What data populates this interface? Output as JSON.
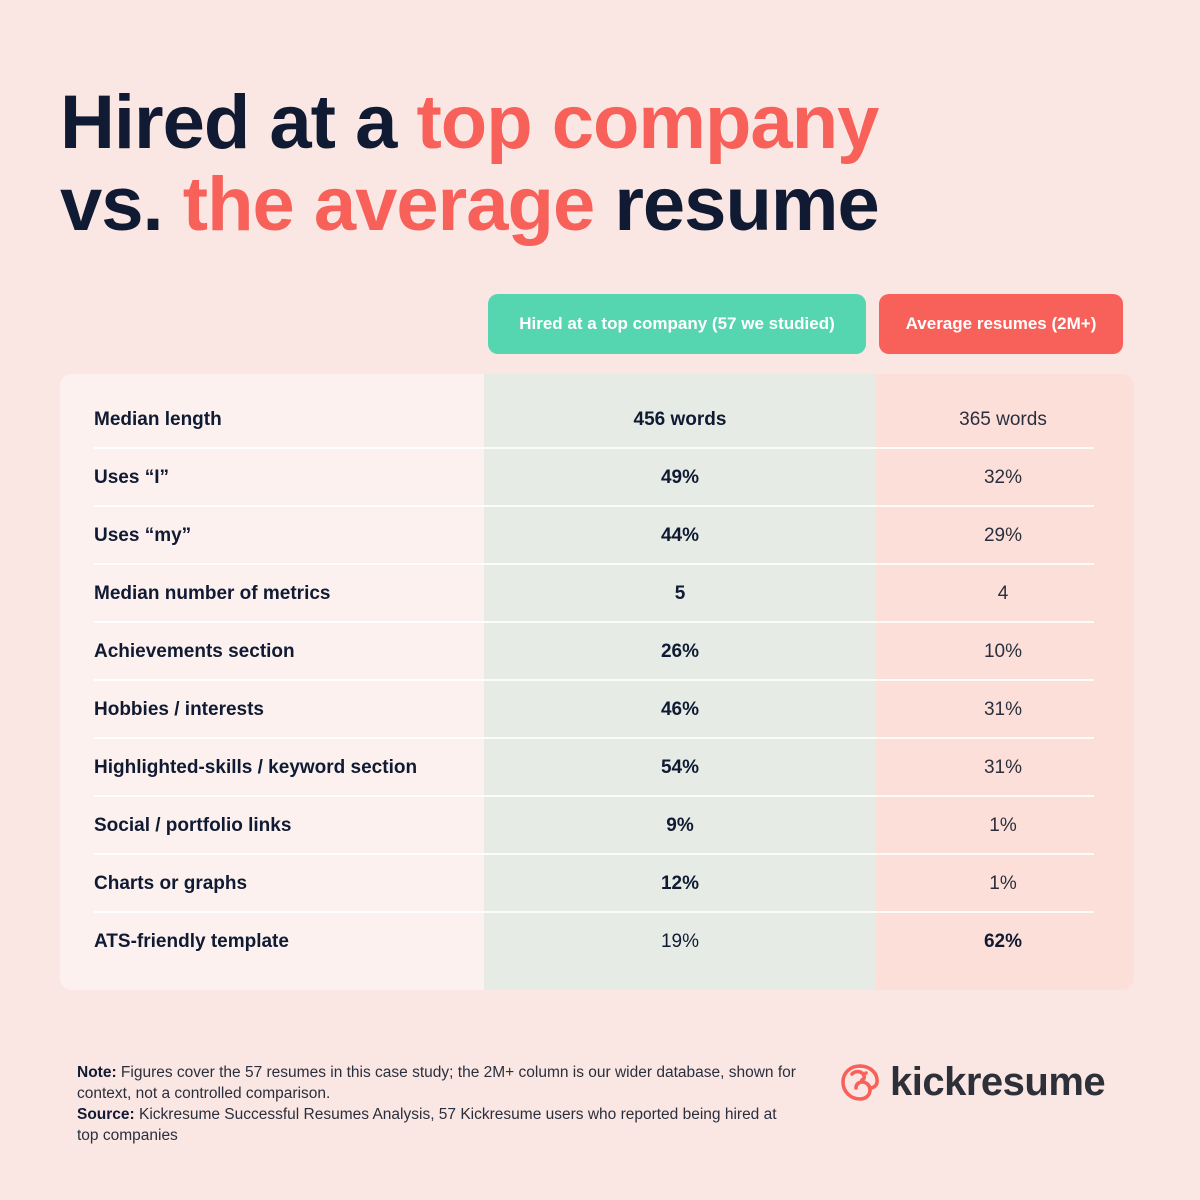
{
  "title": {
    "part1": "Hired at a ",
    "part2": "top company",
    "part3": "vs. ",
    "part4": "the average",
    "part5": " resume"
  },
  "columns": {
    "top": "Hired at a top company (57 we studied)",
    "avg": "Average resumes (2M+)"
  },
  "chart_data": {
    "type": "table",
    "columns": [
      "",
      "Hired at a top company (57 we studied)",
      "Average resumes (2M+)"
    ],
    "rows": [
      {
        "label": "Median length",
        "top": "456 words",
        "avg": "365 words",
        "bold": "top"
      },
      {
        "label": "Uses “I”",
        "top": "49%",
        "avg": "32%",
        "bold": "top"
      },
      {
        "label": "Uses “my”",
        "top": "44%",
        "avg": "29%",
        "bold": "top"
      },
      {
        "label": "Median number of metrics",
        "top": "5",
        "avg": "4",
        "bold": "top"
      },
      {
        "label": "Achievements section",
        "top": "26%",
        "avg": "10%",
        "bold": "top"
      },
      {
        "label": "Hobbies / interests",
        "top": "46%",
        "avg": "31%",
        "bold": "top"
      },
      {
        "label": "Highlighted-skills / keyword section",
        "top": "54%",
        "avg": "31%",
        "bold": "top"
      },
      {
        "label": "Social / portfolio links",
        "top": "9%",
        "avg": "1%",
        "bold": "top"
      },
      {
        "label": "Charts or graphs",
        "top": "12%",
        "avg": "1%",
        "bold": "top"
      },
      {
        "label": "ATS-friendly template",
        "top": "19%",
        "avg": "62%",
        "bold": "avg"
      }
    ]
  },
  "note": {
    "note_label": "Note:",
    "note_text": " Figures cover the 57 resumes in this case study; the 2M+ column is our wider database, shown for context, not a controlled comparison.",
    "source_label": "Source:",
    "source_text": " Kickresume Successful Resumes Analysis, 57 Kickresume users who reported being hired at top companies"
  },
  "logo": {
    "text": "kickresume",
    "icon": "kickresume-logo-icon"
  },
  "colors": {
    "accent_red": "#f8605a",
    "accent_green": "#56d6b0",
    "navy": "#101a33",
    "background": "#fae7e3"
  }
}
